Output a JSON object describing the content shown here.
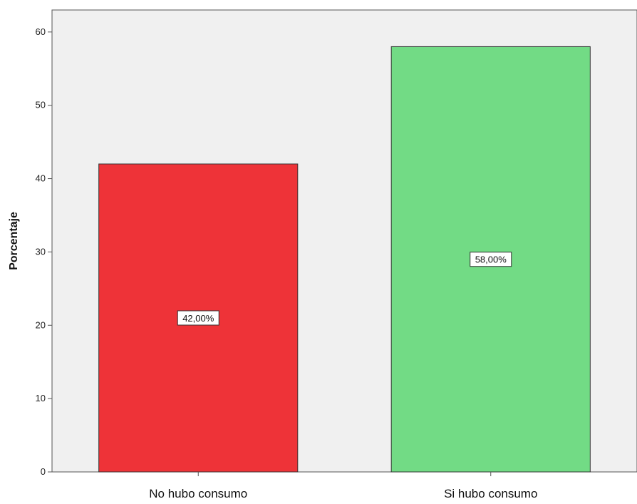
{
  "chart_data": {
    "type": "bar",
    "categories": [
      "No hubo consumo",
      "Si hubo consumo"
    ],
    "values": [
      42.0,
      58.0
    ],
    "data_labels": [
      "42,00%",
      "58,00%"
    ],
    "colors": [
      "#ee3338",
      "#72db85"
    ],
    "ylabel": "Porcentaje",
    "xlabel": "",
    "ylim": [
      0,
      63
    ],
    "yticks": [
      0,
      10,
      20,
      30,
      40,
      50,
      60
    ],
    "ytick_labels": [
      "0",
      "10",
      "20",
      "30",
      "40",
      "50",
      "60"
    ],
    "plot_background": "#f0f0f0",
    "grid": false
  }
}
